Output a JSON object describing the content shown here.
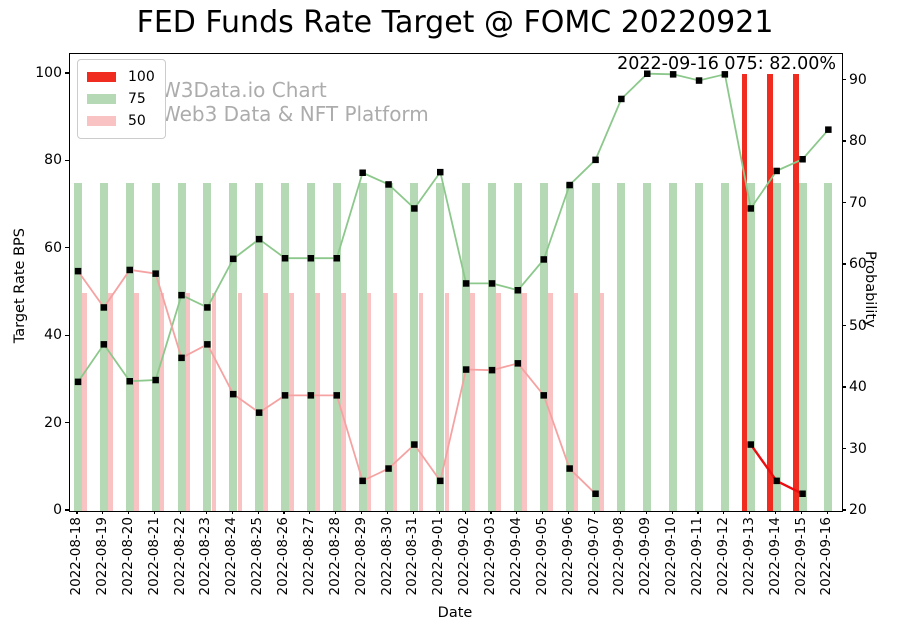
{
  "title": "FED Funds Rate Target @ FOMC 20220921",
  "annotation": "2022-09-16 075: 82.00%",
  "watermark": {
    "line1": "W3Data.io Chart",
    "line2": "Web3 Data & NFT Platform"
  },
  "legend": [
    {
      "label": "100",
      "color": "#f02b20"
    },
    {
      "label": "75",
      "color": "#b4d9b4"
    },
    {
      "label": "50",
      "color": "#f9c3c3"
    }
  ],
  "axes": {
    "left_label": "Target Rate BPS",
    "right_label": "Probability",
    "x_label": "Date",
    "left_ticks": [
      0,
      20,
      40,
      60,
      80,
      100
    ],
    "right_ticks": [
      20,
      30,
      40,
      50,
      60,
      70,
      80,
      90
    ]
  },
  "chart_data": {
    "type": "bar+line",
    "title": "FED Funds Rate Target @ FOMC 20220921",
    "xlabel": "Date",
    "ylabel_left": "Target Rate BPS",
    "ylabel_right": "Probability",
    "ylim_left": [
      0,
      104.6
    ],
    "ylim_right": [
      20,
      94.3
    ],
    "grid": false,
    "legend_position": "upper-left",
    "x": [
      "2022-08-18",
      "2022-08-19",
      "2022-08-20",
      "2022-08-21",
      "2022-08-22",
      "2022-08-23",
      "2022-08-24",
      "2022-08-25",
      "2022-08-26",
      "2022-08-27",
      "2022-08-28",
      "2022-08-29",
      "2022-08-30",
      "2022-08-31",
      "2022-09-01",
      "2022-09-02",
      "2022-09-03",
      "2022-09-04",
      "2022-09-05",
      "2022-09-06",
      "2022-09-07",
      "2022-09-08",
      "2022-09-09",
      "2022-09-10",
      "2022-09-11",
      "2022-09-12",
      "2022-09-13",
      "2022-09-14",
      "2022-09-15",
      "2022-09-16"
    ],
    "bar_series": [
      {
        "name": "100",
        "target_rate_bps": 100,
        "color": "#f02b20",
        "dates": [
          "2022-09-13",
          "2022-09-14",
          "2022-09-15"
        ]
      },
      {
        "name": "75",
        "target_rate_bps": 75,
        "color": "#b4d9b4",
        "dates": [
          "2022-08-18",
          "2022-08-19",
          "2022-08-20",
          "2022-08-21",
          "2022-08-22",
          "2022-08-23",
          "2022-08-24",
          "2022-08-25",
          "2022-08-26",
          "2022-08-27",
          "2022-08-28",
          "2022-08-29",
          "2022-08-30",
          "2022-08-31",
          "2022-09-01",
          "2022-09-02",
          "2022-09-03",
          "2022-09-04",
          "2022-09-05",
          "2022-09-06",
          "2022-09-07",
          "2022-09-08",
          "2022-09-09",
          "2022-09-10",
          "2022-09-11",
          "2022-09-12",
          "2022-09-13",
          "2022-09-14",
          "2022-09-15",
          "2022-09-16"
        ]
      },
      {
        "name": "50",
        "target_rate_bps": 50,
        "color": "#f9c3c3",
        "dates": [
          "2022-08-18",
          "2022-08-19",
          "2022-08-20",
          "2022-08-21",
          "2022-08-22",
          "2022-08-23",
          "2022-08-24",
          "2022-08-25",
          "2022-08-26",
          "2022-08-27",
          "2022-08-28",
          "2022-08-29",
          "2022-08-30",
          "2022-08-31",
          "2022-09-01",
          "2022-09-02",
          "2022-09-03",
          "2022-09-04",
          "2022-09-05",
          "2022-09-06",
          "2022-09-07"
        ]
      }
    ],
    "line_series": [
      {
        "name": "75",
        "axis": "right",
        "color": "#8cc88c",
        "width": 1.8,
        "values": [
          41.0,
          47.1,
          41.1,
          41.3,
          55.1,
          53.1,
          61.0,
          64.2,
          61.1,
          61.1,
          61.1,
          75.0,
          73.1,
          69.2,
          75.1,
          57.0,
          57.0,
          55.9,
          60.9,
          73.0,
          77.1,
          87.0,
          91.1,
          91.0,
          90.0,
          91.0,
          69.2,
          75.3,
          77.2,
          82.0
        ]
      },
      {
        "name": "50",
        "axis": "right",
        "color": "#f5a2a2",
        "width": 1.8,
        "values": [
          59.0,
          53.1,
          59.2,
          58.6,
          44.9,
          47.1,
          39.0,
          36.0,
          38.8,
          38.8,
          38.8,
          24.9,
          26.9,
          30.8,
          24.9,
          43.0,
          42.9,
          44.0,
          38.8,
          26.9,
          22.8,
          null,
          null,
          null,
          null,
          null,
          null,
          null,
          null,
          null
        ]
      },
      {
        "name": "100",
        "axis": "right",
        "color": "#ea0e10",
        "width": 2.4,
        "values": [
          null,
          null,
          null,
          null,
          null,
          null,
          null,
          null,
          null,
          null,
          null,
          null,
          null,
          null,
          null,
          null,
          null,
          null,
          null,
          null,
          null,
          null,
          null,
          null,
          null,
          null,
          30.8,
          24.9,
          22.8,
          null
        ]
      }
    ],
    "marker": {
      "shape": "square",
      "color": "#000000",
      "size": 6.5
    },
    "annotation": {
      "text": "2022-09-16 075: 82.00%",
      "anchor_date": "2022-09-16"
    }
  }
}
